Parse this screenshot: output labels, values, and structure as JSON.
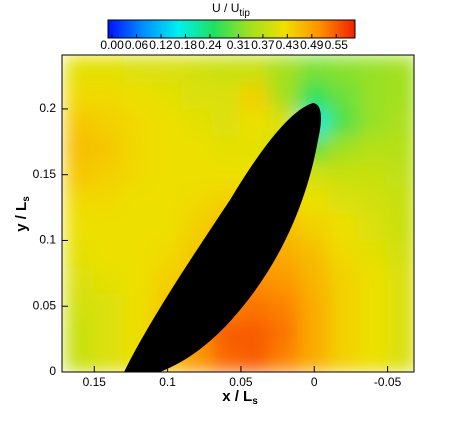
{
  "chart_data": {
    "type": "heatmap",
    "title": "U / U",
    "title_sub": "tip",
    "x_label": "x / L",
    "x_label_sub": "s",
    "y_label": "y / L",
    "y_label_sub": "s",
    "xlim": [
      0.172,
      -0.068
    ],
    "ylim": [
      0,
      0.241
    ],
    "xticks": [
      0.15,
      0.1,
      0.05,
      0,
      -0.05
    ],
    "yticks": [
      0,
      0.05,
      0.1,
      0.15,
      0.2
    ],
    "colorbar_lim": [
      -0.01,
      0.596
    ],
    "colorbar_ticks": [
      {
        "value": 0,
        "label": "0.00"
      },
      {
        "value": 0.06,
        "label": "0.06"
      },
      {
        "value": 0.12,
        "label": "0.12"
      },
      {
        "value": 0.18,
        "label": "0.18"
      },
      {
        "value": 0.24,
        "label": "0.24"
      },
      {
        "value": 0.31,
        "label": "0.31"
      },
      {
        "value": 0.37,
        "label": "0.37"
      },
      {
        "value": 0.43,
        "label": "0.43"
      },
      {
        "value": 0.49,
        "label": "0.49"
      },
      {
        "value": 0.55,
        "label": "0.55"
      }
    ],
    "colormap": [
      "#0010ff",
      "#0090ff",
      "#00f0f0",
      "#20e060",
      "#a0e020",
      "#f0e000",
      "#ff9000",
      "#f02000"
    ],
    "x": [
      0.16,
      0.14,
      0.12,
      0.1,
      0.08,
      0.06,
      0.04,
      0.02,
      0,
      -0.02,
      -0.04,
      -0.06
    ],
    "y": [
      0.01,
      0.03,
      0.05,
      0.07,
      0.09,
      0.11,
      0.13,
      0.15,
      0.17,
      0.19,
      0.21,
      0.23
    ],
    "z": [
      [
        0.38,
        0.4,
        0.42,
        0.46,
        0.5,
        0.54,
        0.55,
        0.52,
        0.48,
        0.44,
        0.42,
        0.4
      ],
      [
        0.38,
        0.4,
        0.42,
        0.46,
        0.5,
        0.55,
        0.55,
        0.53,
        0.48,
        0.44,
        0.42,
        0.4
      ],
      [
        0.39,
        0.4,
        0.42,
        0.45,
        0.48,
        0.52,
        0.53,
        0.52,
        0.48,
        0.44,
        0.42,
        0.4
      ],
      [
        0.4,
        0.41,
        0.42,
        0.44,
        0.46,
        0.5,
        0.51,
        0.5,
        0.47,
        0.44,
        0.42,
        0.4
      ],
      [
        0.41,
        0.42,
        0.42,
        0.43,
        0.45,
        0.48,
        0.49,
        0.48,
        0.46,
        0.43,
        0.41,
        0.39
      ],
      [
        0.42,
        0.42,
        0.42,
        0.42,
        0.44,
        0.46,
        0.47,
        0.46,
        0.44,
        0.42,
        0.4,
        0.38
      ],
      [
        0.43,
        0.43,
        0.42,
        0.42,
        0.43,
        0.44,
        0.44,
        0.43,
        0.42,
        0.4,
        0.39,
        0.38
      ],
      [
        0.45,
        0.44,
        0.43,
        0.42,
        0.42,
        0.42,
        0.42,
        0.41,
        0.39,
        0.38,
        0.38,
        0.37
      ],
      [
        0.46,
        0.45,
        0.43,
        0.42,
        0.42,
        0.41,
        0.41,
        0.38,
        0.3,
        0.34,
        0.36,
        0.36
      ],
      [
        0.45,
        0.44,
        0.43,
        0.42,
        0.41,
        0.4,
        0.42,
        0.4,
        0.18,
        0.28,
        0.33,
        0.35
      ],
      [
        0.43,
        0.43,
        0.42,
        0.41,
        0.4,
        0.4,
        0.44,
        0.34,
        0.26,
        0.3,
        0.33,
        0.34
      ],
      [
        0.41,
        0.41,
        0.4,
        0.4,
        0.39,
        0.38,
        0.38,
        0.34,
        0.31,
        0.32,
        0.33,
        0.34
      ]
    ]
  }
}
